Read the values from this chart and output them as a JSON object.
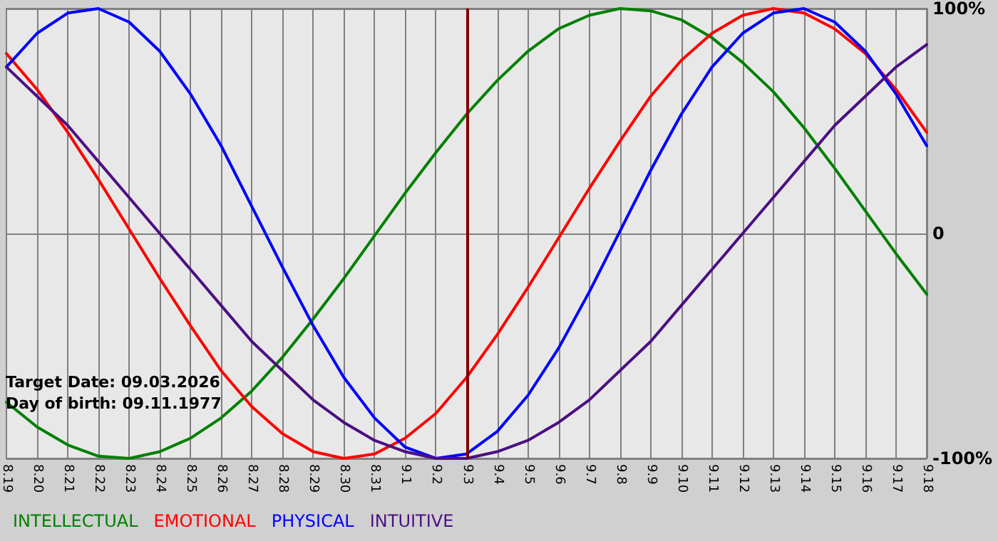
{
  "chart_data": {
    "type": "line",
    "categories": [
      "8.19",
      "8.20",
      "8.21",
      "8.22",
      "8.23",
      "8.24",
      "8.25",
      "8.26",
      "8.27",
      "8.28",
      "8.29",
      "8.30",
      "8.31",
      "9.1",
      "9.2",
      "9.3",
      "9.4",
      "9.5",
      "9.6",
      "9.7",
      "9.8",
      "9.9",
      "9.10",
      "9.11",
      "9.12",
      "9.13",
      "9.14",
      "9.15",
      "9.16",
      "9.17",
      "9.18"
    ],
    "series": [
      {
        "name": "INTELLECTUAL",
        "color": "#008000",
        "values": [
          -75,
          -86,
          -94,
          -99,
          -100,
          -97,
          -91,
          -82,
          -70,
          -55,
          -38,
          -20,
          -1,
          18,
          36,
          53,
          68,
          81,
          91,
          97,
          100,
          99,
          95,
          87,
          76,
          63,
          47,
          29,
          10,
          -9,
          -27
        ]
      },
      {
        "name": "EMOTIONAL",
        "color": "#ff0000",
        "values": [
          80,
          64,
          45,
          24,
          2,
          -20,
          -41,
          -61,
          -77,
          -89,
          -97,
          -100,
          -98,
          -91,
          -80,
          -64,
          -45,
          -24,
          -2,
          20,
          41,
          61,
          77,
          89,
          97,
          100,
          98,
          91,
          80,
          64,
          45
        ]
      },
      {
        "name": "PHYSICAL",
        "color": "#0000ff",
        "values": [
          74,
          89,
          98,
          100,
          94,
          81,
          62,
          39,
          12,
          -15,
          -41,
          -64,
          -82,
          -95,
          -100,
          -98,
          -88,
          -72,
          -51,
          -26,
          1,
          28,
          53,
          74,
          89,
          98,
          100,
          94,
          81,
          62,
          39
        ]
      },
      {
        "name": "INTUITIVE",
        "color": "#4b0f82",
        "values": [
          74,
          61,
          48,
          32,
          16,
          0,
          -16,
          -32,
          -48,
          -61,
          -74,
          -84,
          -92,
          -97,
          -100,
          -100,
          -97,
          -92,
          -84,
          -74,
          -61,
          -48,
          -32,
          -16,
          0,
          16,
          32,
          48,
          61,
          74,
          84
        ]
      }
    ],
    "ylim": [
      -100,
      100
    ],
    "yticks": [
      {
        "value": -100,
        "label": "-100%"
      },
      0,
      {
        "value": 100,
        "label": "100%"
      }
    ],
    "grid": true,
    "legend": "bottom left",
    "marker": "none",
    "line_style": "solid",
    "ref_lines": [
      {
        "axis": "x",
        "value": "9.3",
        "color": "#800000"
      }
    ],
    "annotations": [
      "Target Date: 09.03.2026",
      "Day of birth: 09.11.1977"
    ]
  }
}
